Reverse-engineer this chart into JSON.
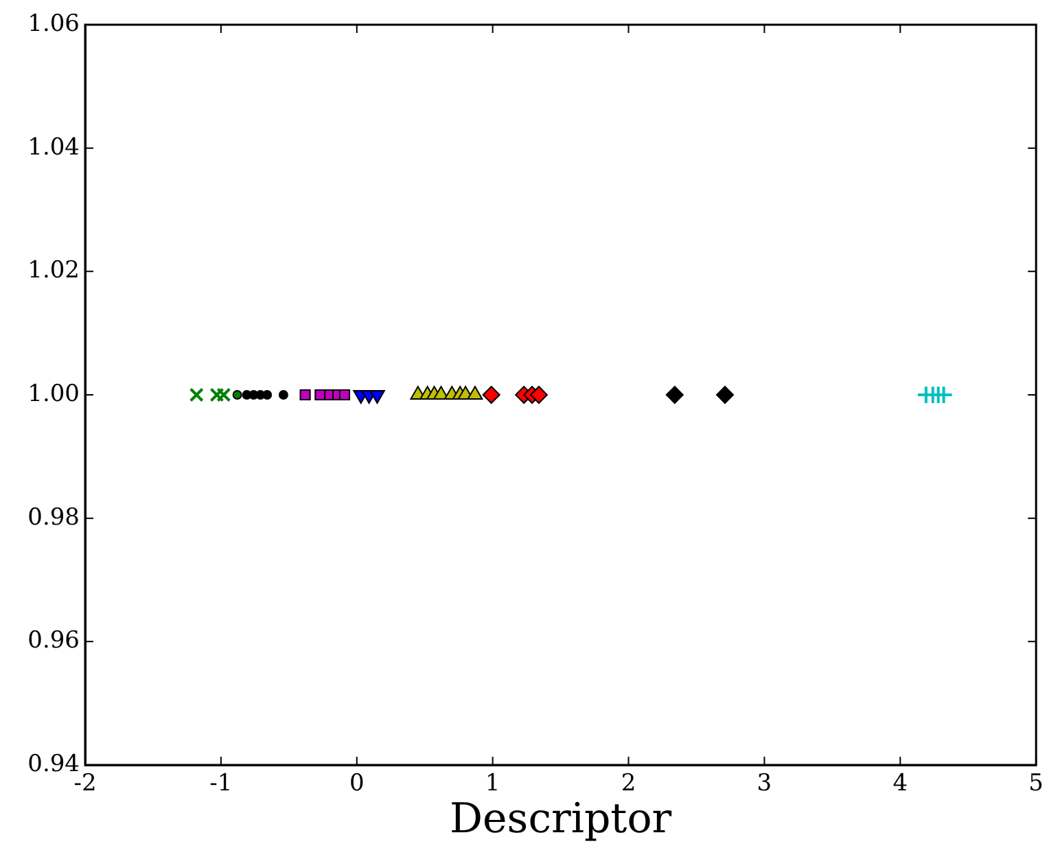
{
  "chart_data": {
    "type": "scatter",
    "xlabel": "Descriptor",
    "xlim": [
      -2,
      5
    ],
    "xticks": [
      -2,
      -1,
      0,
      1,
      2,
      3,
      4,
      5
    ],
    "ylim": [
      0.94,
      1.06
    ],
    "yticks": [
      {
        "value": 0.94,
        "label": "0.94"
      },
      {
        "value": 0.96,
        "label": "0.96"
      },
      {
        "value": 0.98,
        "label": "0.98"
      },
      {
        "value": 1.0,
        "label": "1.00"
      },
      {
        "value": 1.02,
        "label": "1.02"
      },
      {
        "value": 1.04,
        "label": "1.04"
      },
      {
        "value": 1.06,
        "label": "1.06"
      }
    ],
    "grid": false,
    "legend": false,
    "series": [
      {
        "color": "#008000",
        "marker": "cross",
        "x": [
          -1.18,
          -1.03,
          -0.98
        ],
        "values": [
          1,
          1,
          1
        ]
      },
      {
        "color": "#008000",
        "marker": "circle",
        "x": [
          -0.88
        ],
        "values": [
          1
        ]
      },
      {
        "color": "#000000",
        "marker": "circle",
        "x": [
          -0.81,
          -0.76,
          -0.71,
          -0.66,
          -0.54
        ],
        "values": [
          1,
          1,
          1,
          1,
          1
        ]
      },
      {
        "color": "#bf00bf",
        "marker": "square",
        "x": [
          -0.38,
          -0.27,
          -0.2,
          -0.14,
          -0.09
        ],
        "values": [
          1,
          1,
          1,
          1,
          1
        ]
      },
      {
        "color": "#0000ff",
        "marker": "triangle_down",
        "x": [
          0.03,
          0.09,
          0.15
        ],
        "values": [
          1,
          1,
          1
        ]
      },
      {
        "color": "#bfbf00",
        "marker": "triangle",
        "x": [
          0.45,
          0.52,
          0.57,
          0.62,
          0.7,
          0.76,
          0.8,
          0.87
        ],
        "values": [
          1,
          1,
          1,
          1,
          1,
          1,
          1,
          1
        ]
      },
      {
        "color": "#ff0000",
        "marker": "diamond",
        "x": [
          0.99,
          1.23,
          1.29,
          1.34
        ],
        "values": [
          1,
          1,
          1,
          1
        ]
      },
      {
        "color": "#000000",
        "marker": "diamond",
        "x": [
          2.34,
          2.71
        ],
        "values": [
          1,
          1
        ]
      },
      {
        "color": "#00bfbf",
        "marker": "plus",
        "x": [
          4.19,
          4.24,
          4.28,
          4.32
        ],
        "values": [
          1,
          1,
          1,
          1
        ]
      }
    ]
  }
}
